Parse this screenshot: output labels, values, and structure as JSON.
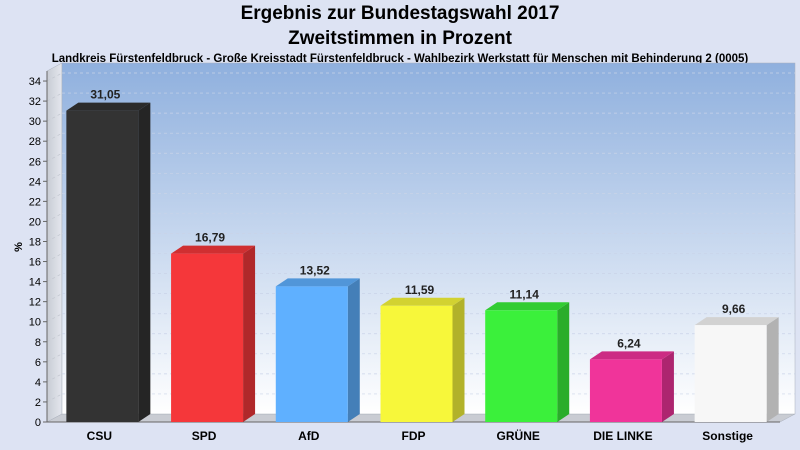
{
  "chart_data": {
    "type": "bar",
    "title": "Ergebnis zur Bundestagswahl 2017",
    "subtitle": "Zweitstimmen in Prozent",
    "caption": "Landkreis Fürstenfeldbruck - Große Kreisstadt Fürstenfeldbruck - Wahlbezirk Werkstatt für Menschen mit Behinderung 2 (0005)",
    "ylabel": "%",
    "ylim": [
      0,
      35
    ],
    "yticks": [
      "0",
      "2",
      "4",
      "6",
      "8",
      "10",
      "12",
      "14",
      "16",
      "18",
      "20",
      "22",
      "24",
      "26",
      "28",
      "30",
      "32",
      "34"
    ],
    "grid": true,
    "categories": [
      "CSU",
      "SPD",
      "AfD",
      "FDP",
      "GRÜNE",
      "DIE LINKE",
      "Sonstige"
    ],
    "values": [
      31.05,
      16.79,
      13.52,
      11.59,
      11.14,
      6.24,
      9.66
    ],
    "value_labels": [
      "31,05",
      "16,79",
      "13,52",
      "11,59",
      "11,14",
      "6,24",
      "9,66"
    ],
    "colors": [
      "#333333",
      "#f5373a",
      "#5fb0ff",
      "#f7f73a",
      "#3bf03b",
      "#f0349a",
      "#f7f7f7"
    ]
  }
}
